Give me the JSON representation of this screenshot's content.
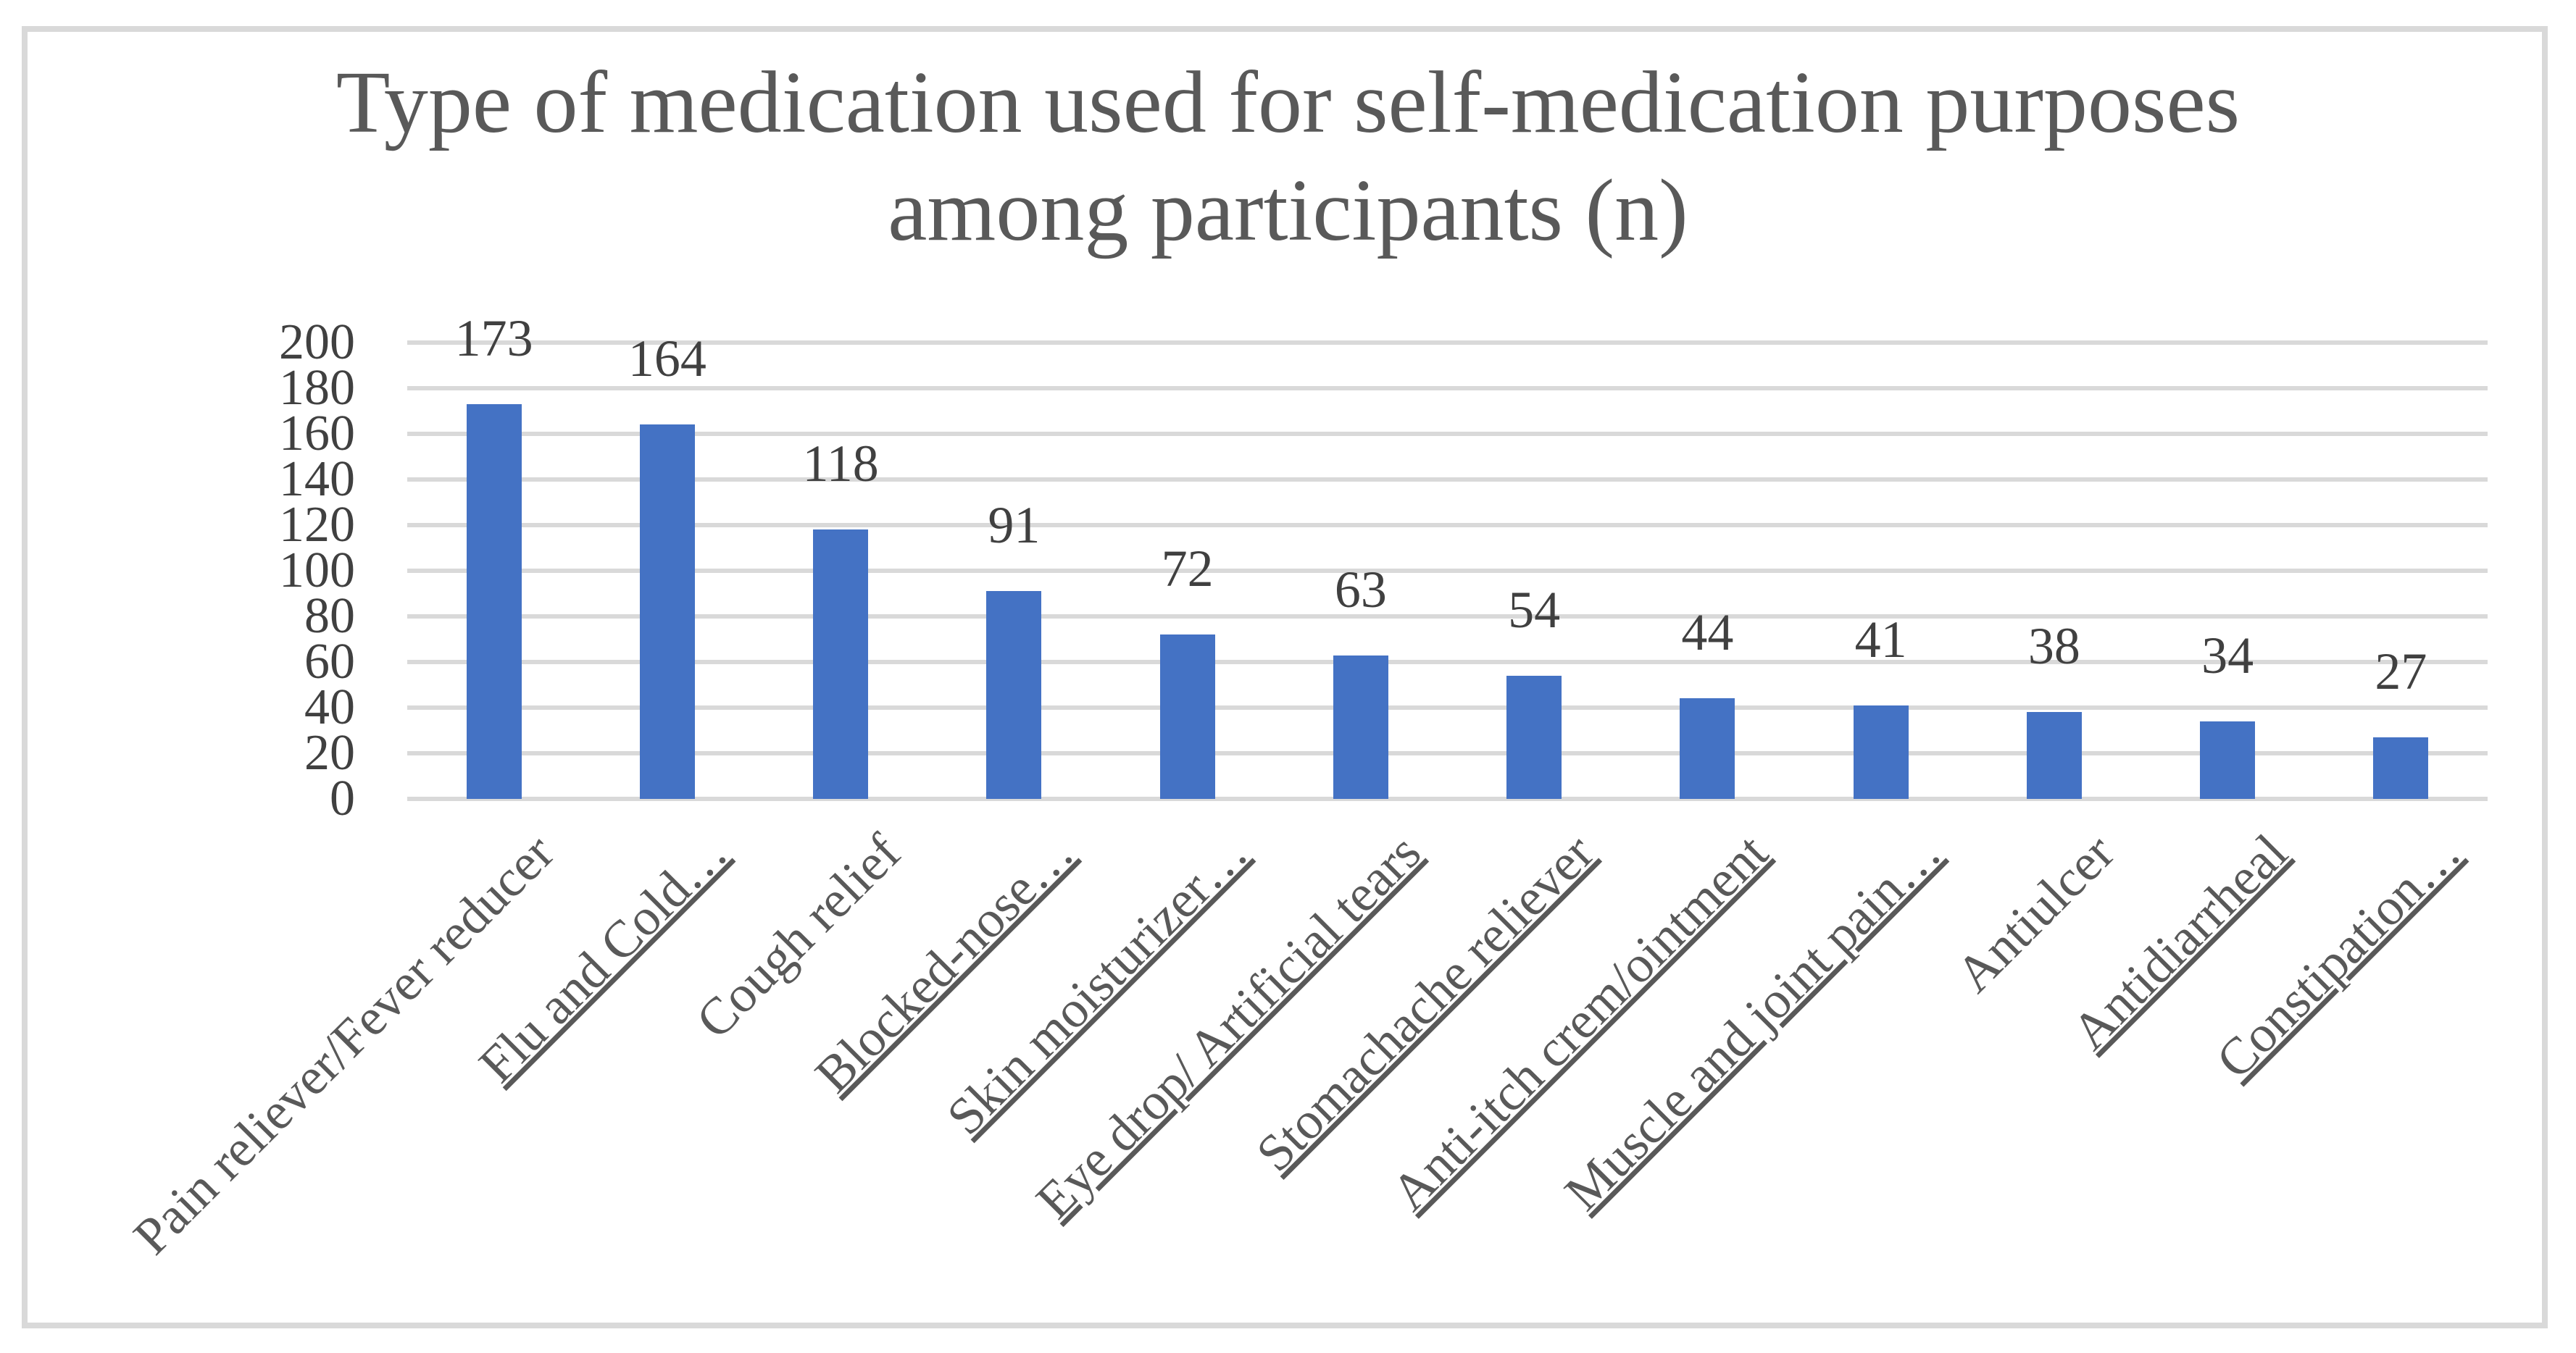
{
  "chart_data": {
    "type": "bar",
    "title": "Type of medication used for self-medication purposes among participants (n)",
    "title_lines": [
      "Type of medication used for self-medication purposes",
      "among participants (n)"
    ],
    "categories": [
      "Pain reliever/Fever reducer",
      "Flu and Cold…",
      "Cough relief",
      "Blocked-nose…",
      "Skin moisturizer…",
      "Eye drop/ Artificial tears",
      "Stomachache reliever",
      "Anti-itch crem/ointment",
      "Muscle and joint pain…",
      "Antiulcer",
      "Antidiarrheal",
      "Constipation…"
    ],
    "values": [
      173,
      164,
      118,
      91,
      72,
      63,
      54,
      44,
      41,
      38,
      34,
      27
    ],
    "category_underlined": [
      false,
      true,
      false,
      true,
      true,
      true,
      true,
      true,
      true,
      false,
      true,
      true
    ],
    "data_labels": [
      173,
      164,
      118,
      91,
      72,
      63,
      54,
      44,
      41,
      38,
      34,
      27
    ],
    "xlabel": "",
    "ylabel": "",
    "ylim": [
      0,
      200
    ],
    "ytick_step": 20,
    "ytick_labels": [
      "200",
      "180",
      "160",
      "140",
      "120",
      "100",
      "80",
      "60",
      "40",
      "20",
      "0"
    ],
    "grid": true,
    "legend_position": "none",
    "label_rotation_deg": 45,
    "colors": {
      "bar": "#4472C4",
      "gridline": "#D9D9D9",
      "frame_border": "#D9D9D9",
      "title_text": "#595959",
      "axis_text": "#404040",
      "category_text": "#595959",
      "background": "#FFFFFF"
    }
  }
}
